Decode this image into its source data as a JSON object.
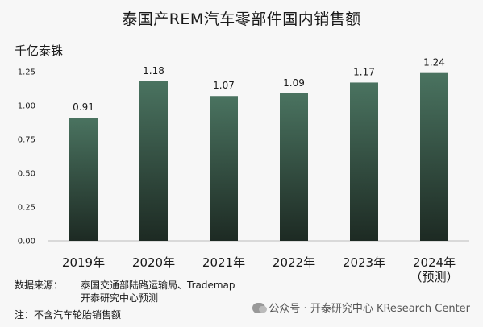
{
  "title": "泰国产REM汽车零部件国内销售额",
  "unit": "千亿泰铢",
  "chart_data": {
    "type": "bar",
    "categories": [
      "2019年",
      "2020年",
      "2021年",
      "2022年",
      "2023年",
      "2024年"
    ],
    "category_sublabels": [
      "",
      "",
      "",
      "",
      "",
      "（预测）"
    ],
    "values": [
      0.91,
      1.18,
      1.07,
      1.09,
      1.17,
      1.24
    ],
    "value_labels": [
      "0.91",
      "1.18",
      "1.07",
      "1.09",
      "1.17",
      "1.24"
    ],
    "ylim": [
      0,
      1.25
    ],
    "yticks": [
      "0.00",
      "0.25",
      "0.50",
      "0.75",
      "1.00",
      "1.25"
    ],
    "ytick_values": [
      0,
      0.25,
      0.5,
      0.75,
      1.0,
      1.25
    ],
    "grid": false,
    "bar_color_top": "#4a7360",
    "bar_color_bottom": "#1d2a23"
  },
  "source": {
    "label": "数据来源：",
    "line1": "泰国交通部陆路运输局、Trademap",
    "line2": "开泰研究中心预测"
  },
  "footnote": "注：不含汽车轮胎销售额",
  "watermark": "公众号 · 开泰研究中心 KResearch Center"
}
